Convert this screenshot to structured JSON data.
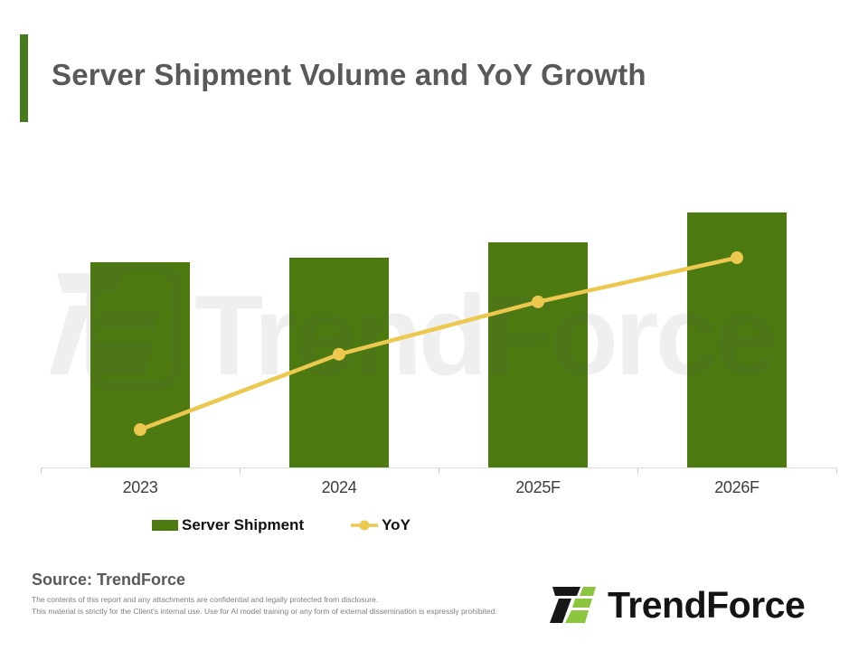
{
  "header": {
    "title": "Server Shipment Volume and YoY Growth",
    "accent_color": "#457a1e",
    "title_color": "#595959"
  },
  "chart_data": {
    "type": "bar",
    "subtype": "bar-line-combo",
    "title": "Server Shipment Volume and YoY Growth",
    "categories": [
      "2023",
      "2024",
      "2025F",
      "2026F"
    ],
    "series": [
      {
        "name": "Server Shipment",
        "type": "bar",
        "color": "#4c7a11",
        "height_fractions": [
          0.619,
          0.631,
          0.678,
          0.768
        ]
      },
      {
        "name": "YoY",
        "type": "line",
        "color": "#ecc84f",
        "height_fractions": [
          0.114,
          0.341,
          0.499,
          0.632
        ]
      }
    ],
    "xlabel": "",
    "ylabel": "",
    "value_axis_visible": false,
    "data_labels_visible": false,
    "grid": false,
    "legend_position": "bottom",
    "axis_line_color": "#dcdcdc"
  },
  "legend": {
    "items": [
      {
        "label": "Server Shipment",
        "swatch": "bar",
        "color": "#4c7a11"
      },
      {
        "label": "YoY",
        "swatch": "line-dot",
        "color": "#ecc84f"
      }
    ]
  },
  "watermark": {
    "text": "TrendForce"
  },
  "footer": {
    "source_label": "Source: TrendForce",
    "disclaimer_lines": [
      "The contents of this report and any attachments are confidential and legally protected from disclosure.",
      "This material is strictly for the Client's internal use. Use for AI model training or any form of external dissemination is expressly prohibited."
    ],
    "logo_text": "TrendForce",
    "logo_colors": {
      "dark": "#151719",
      "green": "#8cc63e"
    }
  }
}
